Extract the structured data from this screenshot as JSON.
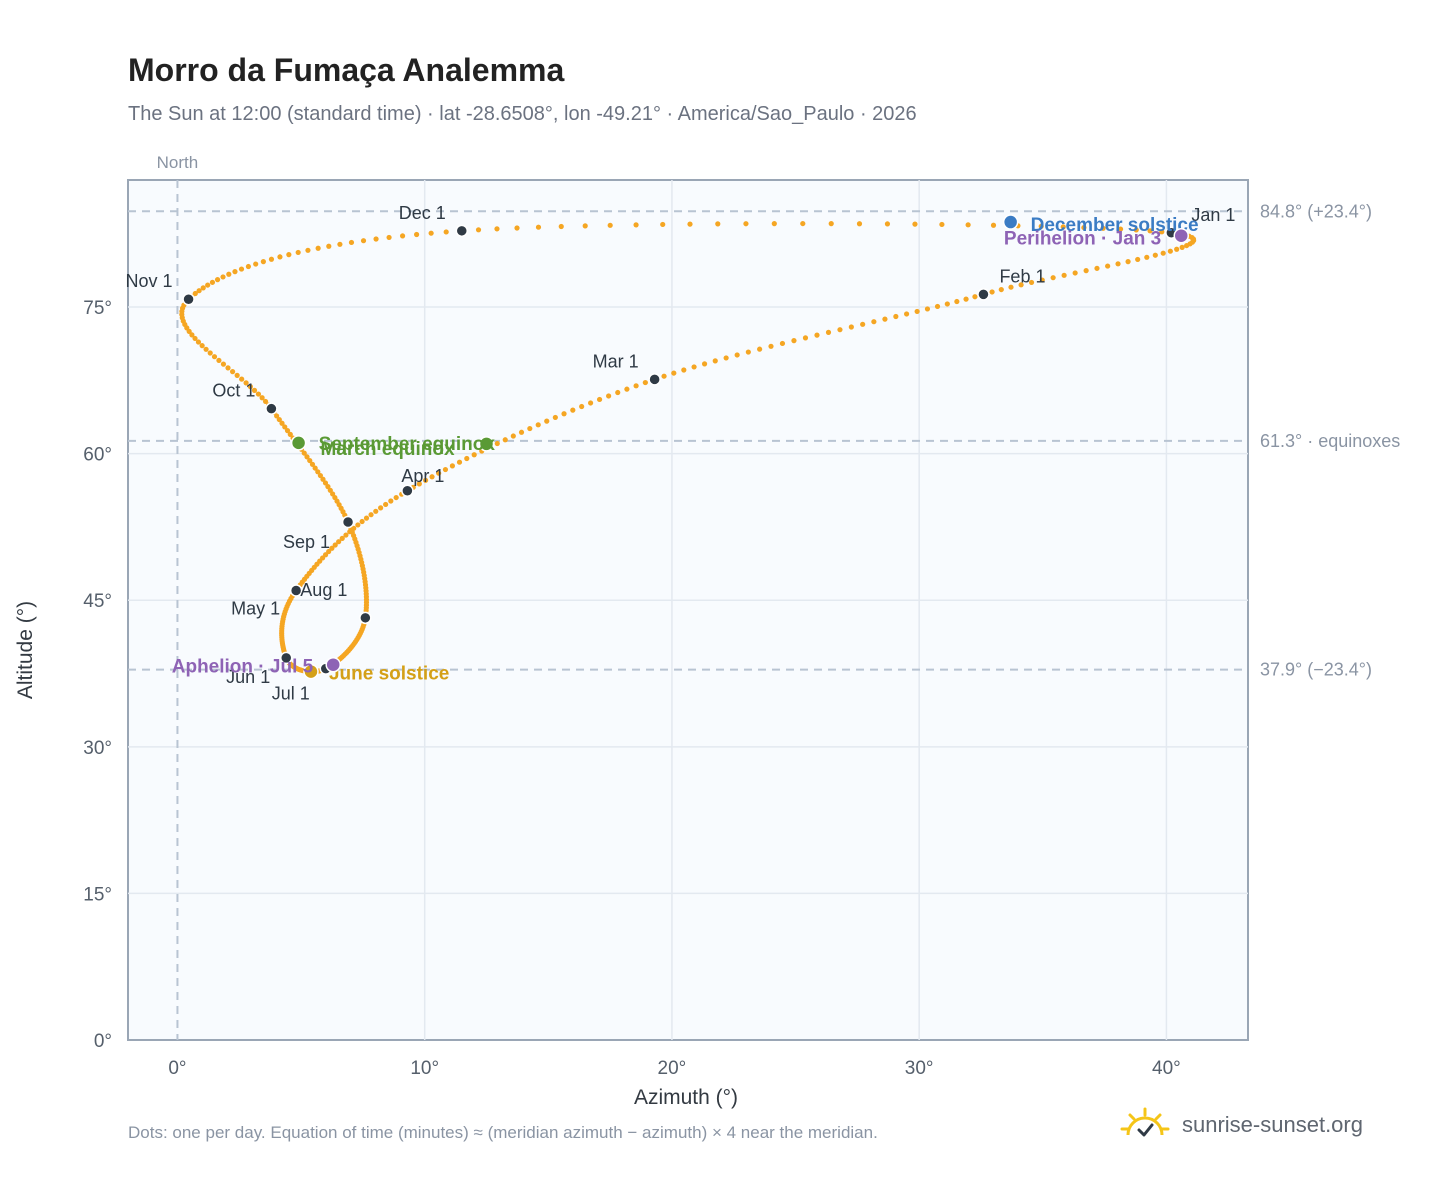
{
  "header": {
    "title": "Morro da Fumaça Analemma",
    "subtitle": "The Sun at 12:00 (standard time) · lat -28.6508°, lon -49.21° · America/Sao_Paulo · 2026"
  },
  "footer": {
    "note": "Dots: one per day. Equation of time (minutes) ≈ (meridian azimuth − azimuth) × 4 near the meridian.",
    "brand": "sunrise-sunset.org"
  },
  "colors": {
    "path": "#f5a623",
    "month_dot": "#2f3a45",
    "equinox": "#5a9a35",
    "june_solstice": "#d4a017",
    "december_solstice": "#3b7cc4",
    "apsis": "#8e63b5",
    "guide": "#b8c4d2",
    "plot_bg": "#f8fbfe"
  },
  "chart_data": {
    "type": "scatter",
    "xlabel": "Azimuth (°)",
    "ylabel": "Altitude (°)",
    "xlim": [
      -2,
      43.3
    ],
    "ylim": [
      0,
      88
    ],
    "x_ticks": [
      0,
      10,
      20,
      30,
      40
    ],
    "x_tick_labels": [
      "0°",
      "10°",
      "20°",
      "30°",
      "40°"
    ],
    "y_ticks": [
      0,
      15,
      30,
      45,
      60,
      75
    ],
    "y_tick_labels": [
      "0°",
      "15°",
      "30°",
      "45°",
      "60°",
      "75°"
    ],
    "grid": true,
    "north_line": {
      "x": 0,
      "label": "North"
    },
    "reference_lines": [
      {
        "y": 84.8,
        "label": "84.8° (+23.4°)"
      },
      {
        "y": 61.3,
        "label": "61.3° · equinoxes"
      },
      {
        "y": 37.9,
        "label": "37.9° (−23.4°)"
      }
    ],
    "month_markers": [
      {
        "label": "Jan 1",
        "x": 40.2,
        "y": 82.6
      },
      {
        "label": "Feb 1",
        "x": 32.6,
        "y": 76.3
      },
      {
        "label": "Mar 1",
        "x": 19.3,
        "y": 67.6
      },
      {
        "label": "Apr 1",
        "x": 9.3,
        "y": 56.2
      },
      {
        "label": "May 1",
        "x": 4.8,
        "y": 46.0
      },
      {
        "label": "Jun 1",
        "x": 4.4,
        "y": 39.1
      },
      {
        "label": "Jul 1",
        "x": 6.0,
        "y": 38.0
      },
      {
        "label": "Aug 1",
        "x": 7.6,
        "y": 43.2
      },
      {
        "label": "Sep 1",
        "x": 6.9,
        "y": 53.0
      },
      {
        "label": "Oct 1",
        "x": 3.8,
        "y": 64.6
      },
      {
        "label": "Nov 1",
        "x": 0.45,
        "y": 75.8
      },
      {
        "label": "Dec 1",
        "x": 11.5,
        "y": 82.8
      }
    ],
    "events": [
      {
        "label": "March equinox",
        "x": 12.5,
        "y": 61.0,
        "type": "equinox"
      },
      {
        "label": "September equinox",
        "x": 4.9,
        "y": 61.1,
        "type": "equinox"
      },
      {
        "label": "June solstice",
        "x": 5.4,
        "y": 37.7,
        "type": "june_solstice"
      },
      {
        "label": "December solstice",
        "x": 33.7,
        "y": 83.7,
        "type": "december_solstice"
      },
      {
        "label": "Perihelion · Jan 3",
        "x": 40.6,
        "y": 82.3,
        "type": "apsis"
      },
      {
        "label": "Aphelion · Jul 5",
        "x": 6.3,
        "y": 38.4,
        "type": "apsis"
      }
    ]
  }
}
